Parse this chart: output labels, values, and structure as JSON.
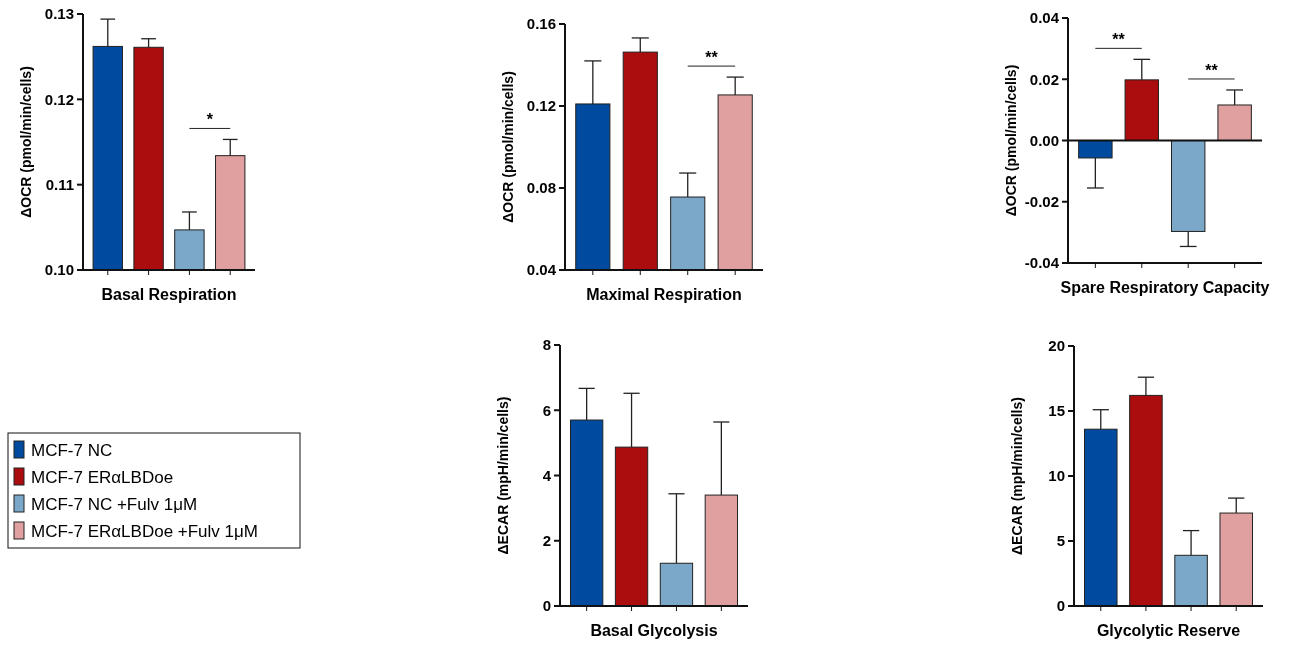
{
  "chart_data": [
    {
      "type": "bar",
      "xlabel": "Basal Respiration",
      "ylabel": "ΔOCR (pmol/min/cells)",
      "categories": [
        null,
        null,
        null,
        null
      ],
      "ylim": [
        0.1,
        0.13
      ],
      "yticks": [
        {
          "value": 0.1,
          "label": "0.10"
        },
        0.11,
        0.12,
        0.13
      ],
      "legend": "bottom",
      "series": [
        {
          "name": "MCF-7 NC",
          "color": "#004a9f",
          "values": [
            0.1262,
            null,
            null,
            null
          ],
          "errors": [
            [
              0.1262,
              0.1294
            ],
            null,
            null,
            null
          ]
        },
        {
          "name": "MCF-7 ERαLBDoe",
          "color": "#ab0d0e",
          "values": [
            null,
            0.1261,
            null,
            null
          ],
          "errors": [
            null,
            [
              0.1261,
              0.1271
            ],
            null,
            null
          ]
        },
        {
          "name": "MCF-7 NC +Fulv 1μM",
          "color": "#7ba7c8",
          "values": [
            null,
            null,
            0.1047,
            null
          ],
          "errors": [
            null,
            null,
            [
              0.1047,
              0.1068
            ],
            null
          ]
        },
        {
          "name": "MCF-7 ERαLBDoe +Fulv 1μM",
          "color": "#e0a09f",
          "values": [
            null,
            null,
            null,
            0.1134
          ],
          "errors": [
            null,
            null,
            null,
            [
              0.1134,
              0.1153
            ]
          ]
        }
      ],
      "annotations": [
        "*"
      ]
    },
    {
      "type": "bar",
      "xlabel": "Maximal Respiration",
      "ylabel": "ΔOCR (pmol/min/cells)",
      "categories": [
        null,
        null,
        null,
        null
      ],
      "ylim": [
        0.04,
        0.16
      ],
      "yticks": [
        0.04,
        0.08,
        0.12,
        0.16
      ],
      "series": [
        {
          "color": "#004a9f",
          "values": [
            0.121,
            null,
            null,
            null
          ],
          "errors": [
            [
              0.121,
              0.142
            ],
            null,
            null,
            null
          ]
        },
        {
          "color": "#ab0d0e",
          "values": [
            null,
            0.1463,
            null,
            null
          ],
          "errors": [
            null,
            [
              0.1463,
              0.1532
            ],
            null,
            null
          ]
        },
        {
          "color": "#7ba7c8",
          "values": [
            null,
            null,
            0.0756,
            null
          ],
          "errors": [
            null,
            null,
            [
              0.0756,
              0.0873
            ],
            null
          ]
        },
        {
          "color": "#e0a09f",
          "values": [
            null,
            null,
            null,
            0.1254
          ],
          "errors": [
            null,
            null,
            null,
            [
              0.1254,
              0.1341
            ]
          ]
        }
      ],
      "annotations": [
        "**"
      ]
    },
    {
      "type": "bar",
      "xlabel": "Spare Respiratory Capacity",
      "ylabel": "ΔOCR (pmol/min/cells)",
      "categories": [
        null,
        null,
        null,
        null
      ],
      "ylim": [
        -0.04,
        0.04
      ],
      "yticks": [
        -0.04,
        -0.02,
        {
          "value": 0,
          "label": "0.00"
        },
        0.02,
        0.04
      ],
      "series": [
        {
          "color": "#004a9f",
          "values": [
            -0.0057,
            null,
            null,
            null
          ],
          "errors": [
            [
              -0.0155,
              -0.0057
            ],
            null,
            null,
            null
          ]
        },
        {
          "color": "#ab0d0e",
          "values": [
            null,
            0.0198,
            null,
            null
          ],
          "errors": [
            null,
            [
              0.0198,
              0.0265
            ],
            null,
            null
          ]
        },
        {
          "color": "#7ba7c8",
          "values": [
            null,
            null,
            -0.0297,
            null
          ],
          "errors": [
            null,
            null,
            [
              -0.0346,
              -0.0297
            ],
            null
          ]
        },
        {
          "color": "#e0a09f",
          "values": [
            null,
            null,
            null,
            0.0116
          ],
          "errors": [
            null,
            null,
            null,
            [
              0.0116,
              0.0165
            ]
          ]
        }
      ],
      "annotations": [
        "**",
        "**"
      ]
    },
    {
      "type": "bar",
      "xlabel": "Basal Glycolysis",
      "ylabel": "ΔECAR (mpH/min/cells)",
      "categories": [
        null,
        null,
        null,
        null
      ],
      "ylim": [
        0,
        8
      ],
      "yticks": [
        0,
        2,
        4,
        6,
        8
      ],
      "series": [
        {
          "color": "#004a9f",
          "values": [
            5.7,
            null,
            null,
            null
          ],
          "errors": [
            [
              5.7,
              6.67
            ],
            null,
            null,
            null
          ]
        },
        {
          "color": "#ab0d0e",
          "values": [
            null,
            4.87,
            null,
            null
          ],
          "errors": [
            null,
            [
              4.87,
              6.52
            ],
            null,
            null
          ]
        },
        {
          "color": "#7ba7c8",
          "values": [
            null,
            null,
            1.31,
            null
          ],
          "errors": [
            null,
            null,
            [
              1.31,
              3.44
            ],
            null
          ]
        },
        {
          "color": "#e0a09f",
          "values": [
            null,
            null,
            null,
            3.4
          ],
          "errors": [
            null,
            null,
            null,
            [
              3.4,
              5.64
            ]
          ]
        }
      ]
    },
    {
      "type": "bar",
      "xlabel": "Glycolytic Reserve",
      "ylabel": "ΔECAR (mpH/min/cells)",
      "categories": [
        null,
        null,
        null,
        null
      ],
      "ylim": [
        0,
        20
      ],
      "yticks": [
        0,
        5,
        10,
        15,
        20
      ],
      "series": [
        {
          "color": "#004a9f",
          "values": [
            13.6,
            null,
            null,
            null
          ],
          "errors": [
            [
              13.6,
              15.1
            ],
            null,
            null,
            null
          ]
        },
        {
          "color": "#ab0d0e",
          "values": [
            null,
            16.2,
            null,
            null
          ],
          "errors": [
            null,
            [
              16.2,
              17.6
            ],
            null,
            null
          ]
        },
        {
          "color": "#7ba7c8",
          "values": [
            null,
            null,
            3.9,
            null
          ],
          "errors": [
            null,
            null,
            [
              3.9,
              5.8
            ],
            null
          ]
        },
        {
          "color": "#e0a09f",
          "values": [
            null,
            null,
            null,
            7.15
          ],
          "errors": [
            null,
            null,
            null,
            [
              7.15,
              8.3
            ]
          ]
        }
      ]
    }
  ]
}
